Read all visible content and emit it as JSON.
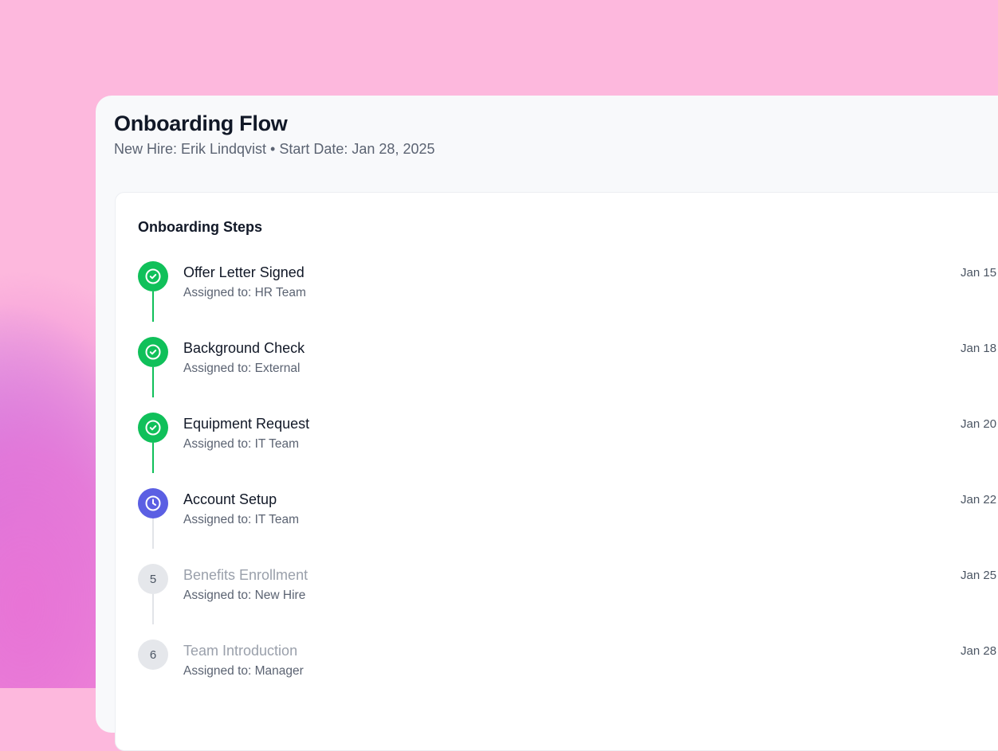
{
  "header": {
    "title": "Onboarding Flow",
    "subtitle": "New Hire: Erik Lindqvist • Start Date: Jan 28, 2025"
  },
  "card": {
    "title": "Onboarding Steps"
  },
  "colors": {
    "done": "#10c05a",
    "active": "#5b5fe3",
    "pending": "#e5e7eb"
  },
  "steps": [
    {
      "title": "Offer Letter Signed",
      "assigned": "Assigned to: HR Team",
      "date": "Jan 15",
      "status": "done",
      "icon": "check-circle-icon"
    },
    {
      "title": "Background Check",
      "assigned": "Assigned to: External",
      "date": "Jan 18",
      "status": "done",
      "icon": "check-circle-icon"
    },
    {
      "title": "Equipment Request",
      "assigned": "Assigned to: IT Team",
      "date": "Jan 20",
      "status": "done",
      "icon": "check-circle-icon"
    },
    {
      "title": "Account Setup",
      "assigned": "Assigned to: IT Team",
      "date": "Jan 22",
      "status": "active",
      "icon": "clock-icon"
    },
    {
      "title": "Benefits Enrollment",
      "assigned": "Assigned to: New Hire",
      "date": "Jan 25",
      "status": "pending",
      "number": "5"
    },
    {
      "title": "Team Introduction",
      "assigned": "Assigned to: Manager",
      "date": "Jan 28",
      "status": "pending",
      "number": "6"
    }
  ]
}
